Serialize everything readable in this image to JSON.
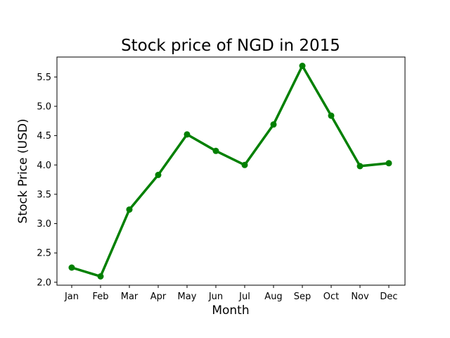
{
  "chart_data": {
    "type": "line",
    "title": "Stock price of NGD in 2015",
    "xlabel": "Month",
    "ylabel": "Stock Price (USD)",
    "categories": [
      "Jan",
      "Feb",
      "Mar",
      "Apr",
      "May",
      "Jun",
      "Jul",
      "Aug",
      "Sep",
      "Oct",
      "Nov",
      "Dec"
    ],
    "series": [
      {
        "values": [
          2.25,
          2.1,
          3.24,
          3.83,
          4.52,
          4.24,
          4.0,
          4.69,
          5.69,
          4.84,
          3.98,
          4.03
        ],
        "color": "#008000",
        "marker": "circle"
      }
    ],
    "ylim": [
      1.95,
      5.84
    ],
    "yticks": [
      2.0,
      2.5,
      3.0,
      3.5,
      4.0,
      4.5,
      5.0,
      5.5
    ],
    "ytick_labels": [
      "2.0",
      "2.5",
      "3.0",
      "3.5",
      "4.0",
      "4.5",
      "5.0",
      "5.5"
    ],
    "grid": false,
    "legend": "none"
  }
}
